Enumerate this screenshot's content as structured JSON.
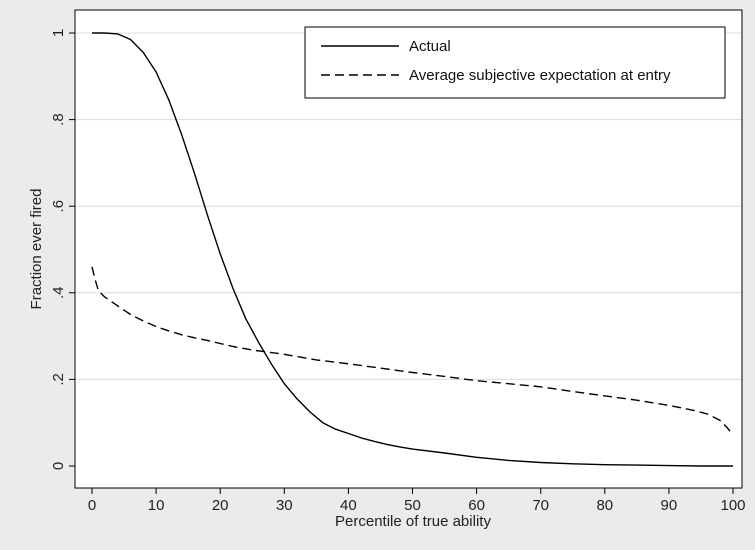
{
  "chart_data": {
    "type": "line",
    "xlabel": "Percentile of true ability",
    "ylabel": "Fraction ever fired",
    "xlim": [
      0,
      100
    ],
    "ylim": [
      0,
      1
    ],
    "x_ticks": [
      0,
      10,
      20,
      30,
      40,
      50,
      60,
      70,
      80,
      90,
      100
    ],
    "x_tick_labels": [
      "0",
      "10",
      "20",
      "30",
      "40",
      "50",
      "60",
      "70",
      "80",
      "90",
      "100"
    ],
    "y_ticks": [
      0,
      0.2,
      0.4,
      0.6,
      0.8,
      1
    ],
    "y_tick_labels": [
      "0",
      ".2",
      ".4",
      ".6",
      ".8",
      "1"
    ],
    "grid": "horizontal",
    "legend_position": "top-right",
    "series": [
      {
        "name": "Actual",
        "style": "solid",
        "color": "#000000",
        "points": [
          [
            0,
            1.0
          ],
          [
            2,
            1.0
          ],
          [
            4,
            0.998
          ],
          [
            6,
            0.985
          ],
          [
            8,
            0.955
          ],
          [
            10,
            0.91
          ],
          [
            12,
            0.845
          ],
          [
            14,
            0.765
          ],
          [
            16,
            0.675
          ],
          [
            18,
            0.58
          ],
          [
            20,
            0.49
          ],
          [
            22,
            0.41
          ],
          [
            24,
            0.34
          ],
          [
            26,
            0.285
          ],
          [
            28,
            0.235
          ],
          [
            30,
            0.19
          ],
          [
            32,
            0.155
          ],
          [
            34,
            0.125
          ],
          [
            36,
            0.1
          ],
          [
            38,
            0.085
          ],
          [
            40,
            0.075
          ],
          [
            42,
            0.065
          ],
          [
            44,
            0.057
          ],
          [
            46,
            0.05
          ],
          [
            48,
            0.044
          ],
          [
            50,
            0.039
          ],
          [
            55,
            0.03
          ],
          [
            60,
            0.02
          ],
          [
            65,
            0.013
          ],
          [
            70,
            0.008
          ],
          [
            75,
            0.005
          ],
          [
            80,
            0.003
          ],
          [
            85,
            0.002
          ],
          [
            90,
            0.001
          ],
          [
            95,
            0.0
          ],
          [
            100,
            0.0
          ]
        ]
      },
      {
        "name": "Average subjective expectation at entry",
        "style": "dashed",
        "color": "#000000",
        "points": [
          [
            0,
            0.46
          ],
          [
            0.5,
            0.43
          ],
          [
            1,
            0.405
          ],
          [
            2,
            0.39
          ],
          [
            4,
            0.37
          ],
          [
            6,
            0.35
          ],
          [
            8,
            0.335
          ],
          [
            10,
            0.322
          ],
          [
            12,
            0.312
          ],
          [
            14,
            0.303
          ],
          [
            16,
            0.296
          ],
          [
            18,
            0.29
          ],
          [
            20,
            0.283
          ],
          [
            22,
            0.276
          ],
          [
            25,
            0.268
          ],
          [
            28,
            0.262
          ],
          [
            30,
            0.258
          ],
          [
            35,
            0.245
          ],
          [
            40,
            0.236
          ],
          [
            45,
            0.226
          ],
          [
            50,
            0.216
          ],
          [
            55,
            0.207
          ],
          [
            60,
            0.197
          ],
          [
            65,
            0.19
          ],
          [
            70,
            0.183
          ],
          [
            75,
            0.172
          ],
          [
            80,
            0.162
          ],
          [
            85,
            0.152
          ],
          [
            90,
            0.14
          ],
          [
            94,
            0.128
          ],
          [
            96,
            0.12
          ],
          [
            98,
            0.105
          ],
          [
            99,
            0.09
          ],
          [
            100,
            0.072
          ]
        ]
      }
    ]
  }
}
